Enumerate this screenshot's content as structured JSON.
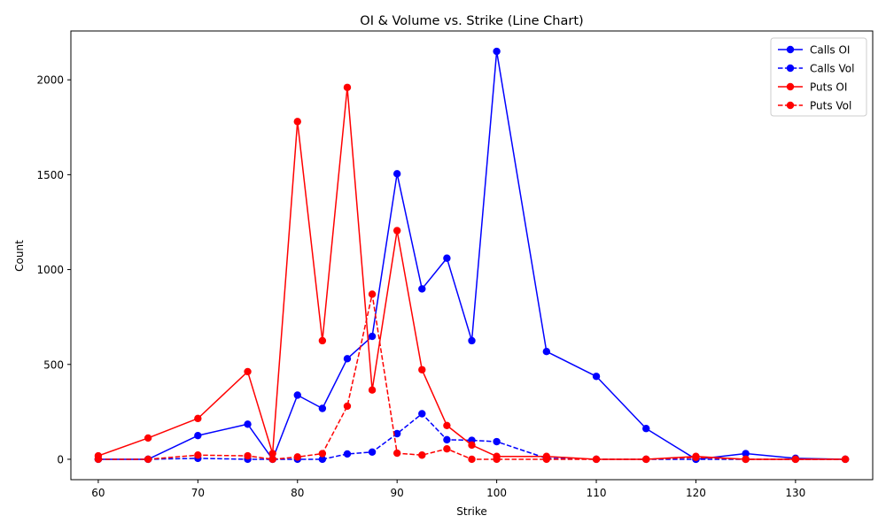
{
  "chart_data": {
    "type": "line",
    "title": "OI & Volume vs. Strike (Line Chart)",
    "xlabel": "Strike",
    "ylabel": "Count",
    "xlim": [
      57.25,
      137.75
    ],
    "ylim": [
      -107.5,
      2257.5
    ],
    "xticks": [
      60,
      70,
      80,
      90,
      100,
      110,
      120,
      130
    ],
    "yticks": [
      0,
      500,
      1000,
      1500,
      2000
    ],
    "grid": false,
    "legend_position": "top-right",
    "x": [
      60,
      65,
      70,
      75,
      77.5,
      80,
      82.5,
      85,
      87.5,
      90,
      92.5,
      95,
      97.5,
      100,
      105,
      110,
      115,
      120,
      125,
      130,
      135
    ],
    "series": [
      {
        "name": "Calls OI",
        "color": "#0000ff",
        "dash": "solid",
        "values": [
          0,
          0,
          125,
          185,
          0,
          338,
          268,
          530,
          648,
          1505,
          898,
          1060,
          625,
          2150,
          568,
          437,
          162,
          0,
          30,
          5,
          0
        ]
      },
      {
        "name": "Calls Vol",
        "color": "#0000ff",
        "dash": "dashed",
        "values": [
          0,
          0,
          5,
          0,
          0,
          0,
          0,
          28,
          38,
          135,
          240,
          103,
          100,
          93,
          5,
          0,
          0,
          0,
          0,
          0,
          0
        ]
      },
      {
        "name": "Puts OI",
        "color": "#ff0000",
        "dash": "solid",
        "values": [
          18,
          112,
          215,
          462,
          30,
          1780,
          625,
          1960,
          365,
          1205,
          472,
          178,
          75,
          15,
          15,
          0,
          0,
          15,
          0,
          0,
          0
        ]
      },
      {
        "name": "Puts Vol",
        "color": "#ff0000",
        "dash": "dashed",
        "values": [
          0,
          0,
          22,
          18,
          0,
          12,
          30,
          280,
          870,
          32,
          22,
          55,
          0,
          0,
          0,
          0,
          0,
          10,
          0,
          0,
          0
        ]
      }
    ]
  }
}
